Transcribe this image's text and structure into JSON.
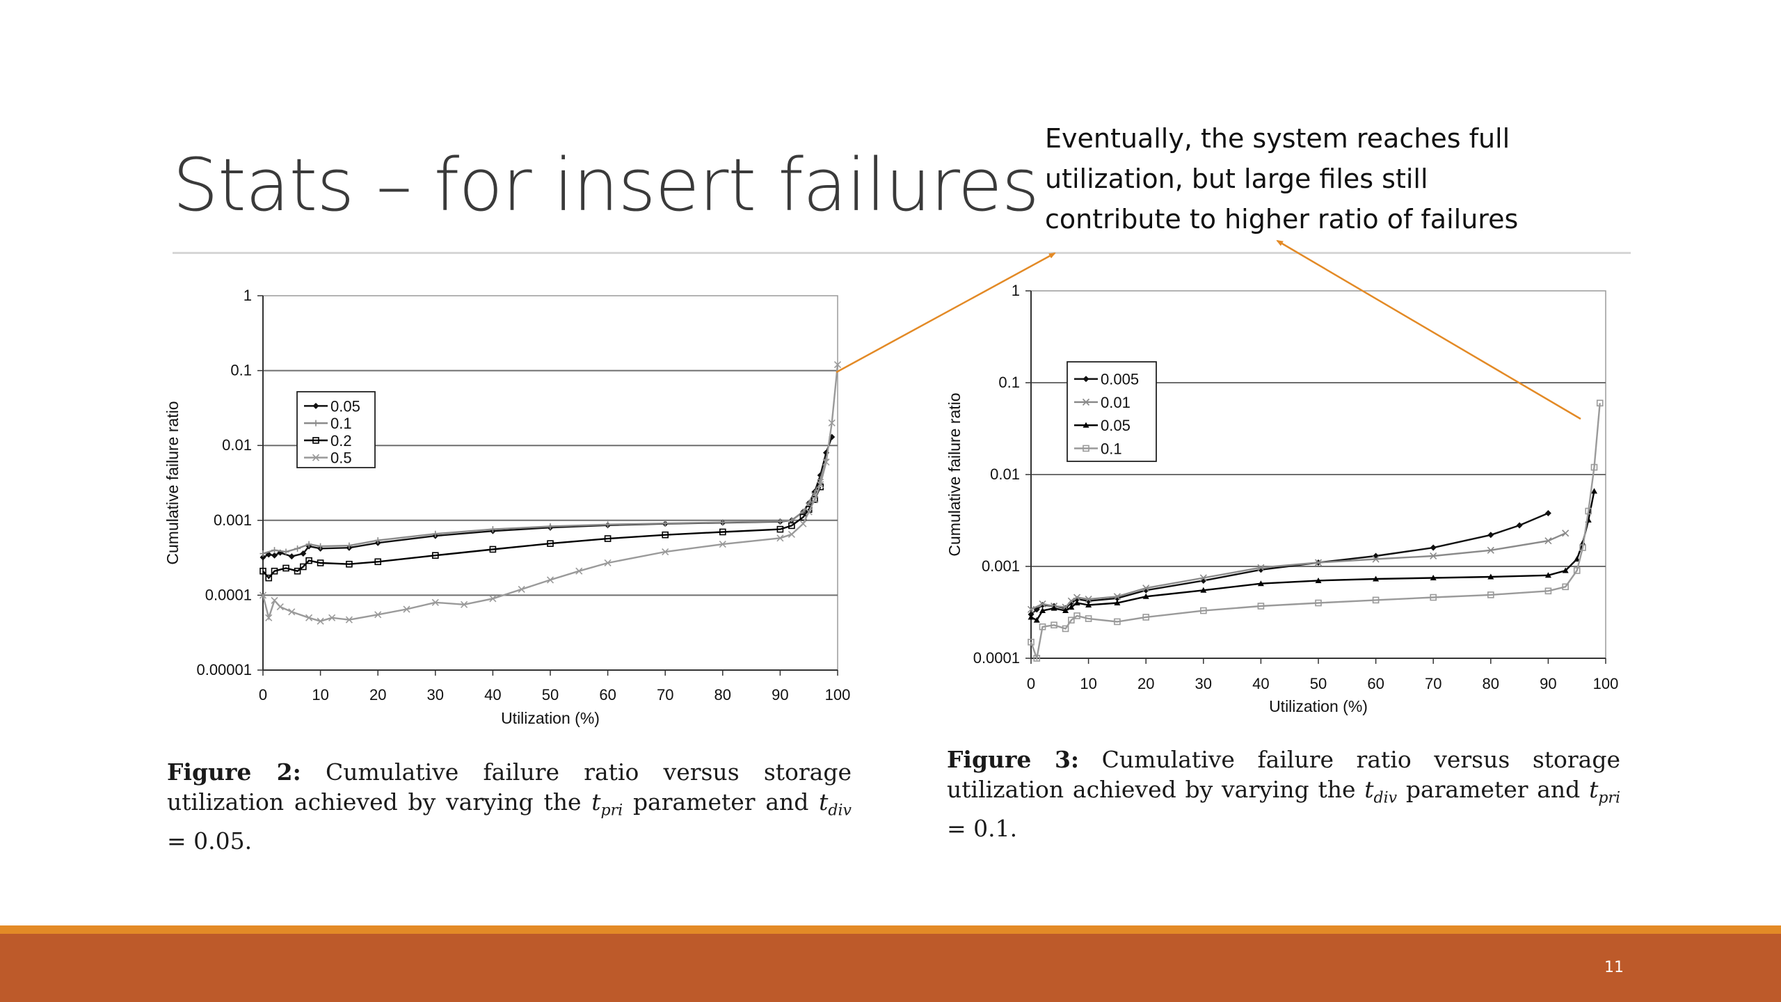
{
  "slide": {
    "title": "Stats – for insert failures",
    "callout_lines": [
      "Eventually, the system reaches full",
      "utilization, but large files still",
      "contribute to higher ratio of failures"
    ],
    "page_number": "11"
  },
  "colors": {
    "accent_orange": "#e38a26",
    "footer_bar": "#bd5a2a",
    "arrow": "#e38a26"
  },
  "captions": [
    {
      "label": "Figure 2:",
      "before": "Cumulative failure ratio versus storage utilization achieved by varying the",
      "var1": "t",
      "var1_sub": "pri",
      "middle": "parameter and",
      "var2": "t",
      "var2_sub": "div",
      "after": "= 0.05."
    },
    {
      "label": "Figure 3:",
      "before": "Cumulative failure ratio versus storage utilization achieved by varying the",
      "var1": "t",
      "var1_sub": "div",
      "middle": "parameter and",
      "var2": "t",
      "var2_sub": "pri",
      "after": "= 0.1."
    }
  ],
  "chart_data": [
    {
      "type": "line",
      "xlabel": "Utilization (%)",
      "ylabel": "Cumulative failure ratio",
      "xlim": [
        0,
        100
      ],
      "ylim": [
        1e-05,
        1
      ],
      "log_y": true,
      "grid": "horizontal",
      "legend_position": "top-left",
      "x_ticks": [
        "0",
        "10",
        "20",
        "30",
        "40",
        "50",
        "60",
        "70",
        "80",
        "90",
        "100"
      ],
      "y_ticks": [
        "1",
        "0.1",
        "0.01",
        "0.001",
        "0.0001",
        "0.00001"
      ],
      "series": [
        {
          "name": "0.05",
          "color": "#111111",
          "marker": "diamond",
          "x": [
            0,
            1,
            2,
            3,
            5,
            7,
            8,
            10,
            15,
            20,
            30,
            40,
            50,
            60,
            70,
            80,
            90,
            92,
            94,
            95,
            96,
            97,
            98,
            99
          ],
          "y": [
            0.00032,
            0.00035,
            0.00034,
            0.00037,
            0.00033,
            0.00036,
            0.00045,
            0.00042,
            0.00043,
            0.0005,
            0.00062,
            0.00072,
            0.0008,
            0.00086,
            0.0009,
            0.00093,
            0.00096,
            0.001,
            0.0013,
            0.0017,
            0.0024,
            0.004,
            0.008,
            0.013
          ]
        },
        {
          "name": "0.1",
          "color": "#8a8a8a",
          "marker": "plus",
          "x": [
            0,
            2,
            4,
            6,
            8,
            10,
            15,
            20,
            30,
            40,
            50,
            60,
            70,
            80,
            90,
            92,
            94,
            95,
            96,
            97,
            98
          ],
          "y": [
            0.00036,
            0.0004,
            0.00038,
            0.00042,
            0.00048,
            0.00045,
            0.00046,
            0.00054,
            0.00066,
            0.00076,
            0.00083,
            0.00088,
            0.00091,
            0.00094,
            0.00097,
            0.001,
            0.0013,
            0.0017,
            0.0023,
            0.0035,
            0.0065
          ]
        },
        {
          "name": "0.2",
          "color": "#000000",
          "marker": "square",
          "x": [
            0,
            1,
            2,
            4,
            6,
            7,
            8,
            10,
            15,
            20,
            30,
            40,
            50,
            60,
            70,
            80,
            90,
            92,
            94,
            95,
            96,
            97
          ],
          "y": [
            0.00021,
            0.00017,
            0.00021,
            0.00023,
            0.00021,
            0.00024,
            0.00029,
            0.00027,
            0.00026,
            0.00028,
            0.00034,
            0.00041,
            0.00049,
            0.00057,
            0.00064,
            0.0007,
            0.00076,
            0.00085,
            0.0011,
            0.0014,
            0.0019,
            0.0028
          ]
        },
        {
          "name": "0.5",
          "color": "#9a9a9a",
          "marker": "x",
          "x": [
            0,
            1,
            2,
            3,
            5,
            8,
            10,
            12,
            15,
            20,
            25,
            30,
            35,
            40,
            45,
            50,
            55,
            60,
            70,
            80,
            90,
            92,
            94,
            95,
            96,
            97,
            98,
            99,
            100
          ],
          "y": [
            0.0001,
            5e-05,
            8.5e-05,
            7e-05,
            6e-05,
            5e-05,
            4.5e-05,
            5e-05,
            4.7e-05,
            5.5e-05,
            6.5e-05,
            8e-05,
            7.5e-05,
            9e-05,
            0.00012,
            0.00016,
            0.00021,
            0.00027,
            0.00038,
            0.00048,
            0.00058,
            0.00065,
            0.0009,
            0.0013,
            0.0019,
            0.003,
            0.006,
            0.02,
            0.12
          ]
        }
      ]
    },
    {
      "type": "line",
      "xlabel": "Utilization (%)",
      "ylabel": "Cumulative failure ratio",
      "xlim": [
        0,
        100
      ],
      "ylim": [
        0.0001,
        1
      ],
      "log_y": true,
      "grid": "horizontal",
      "legend_position": "top-left",
      "x_ticks": [
        "0",
        "10",
        "20",
        "30",
        "40",
        "50",
        "60",
        "70",
        "80",
        "90",
        "100"
      ],
      "y_ticks": [
        "1",
        "0.1",
        "0.01",
        "0.001",
        "0.0001"
      ],
      "series": [
        {
          "name": "0.005",
          "color": "#111111",
          "marker": "diamond",
          "x": [
            0,
            1,
            2,
            4,
            6,
            7,
            8,
            10,
            15,
            20,
            30,
            40,
            50,
            60,
            70,
            80,
            85,
            90
          ],
          "y": [
            0.0003,
            0.00034,
            0.00038,
            0.00037,
            0.00035,
            0.0004,
            0.00044,
            0.00042,
            0.00045,
            0.00055,
            0.0007,
            0.00092,
            0.0011,
            0.0013,
            0.0016,
            0.0022,
            0.0028,
            0.0038
          ]
        },
        {
          "name": "0.01",
          "color": "#8a8a8a",
          "marker": "x",
          "x": [
            0,
            2,
            4,
            6,
            7,
            8,
            10,
            15,
            20,
            30,
            40,
            50,
            60,
            70,
            80,
            90,
            93
          ],
          "y": [
            0.00034,
            0.00039,
            0.00037,
            0.00036,
            0.00042,
            0.00046,
            0.00044,
            0.00047,
            0.00058,
            0.00075,
            0.00097,
            0.0011,
            0.0012,
            0.0013,
            0.0015,
            0.0019,
            0.0023
          ]
        },
        {
          "name": "0.05",
          "color": "#000000",
          "marker": "triangle",
          "x": [
            0,
            1,
            2,
            4,
            6,
            7,
            8,
            10,
            15,
            20,
            30,
            40,
            50,
            60,
            70,
            80,
            90,
            93,
            95,
            96,
            97,
            98
          ],
          "y": [
            0.00028,
            0.00026,
            0.00033,
            0.00035,
            0.00033,
            0.00036,
            0.0004,
            0.00038,
            0.0004,
            0.00047,
            0.00055,
            0.00065,
            0.0007,
            0.00073,
            0.00075,
            0.00077,
            0.0008,
            0.0009,
            0.0012,
            0.0018,
            0.0032,
            0.0066
          ]
        },
        {
          "name": "0.1",
          "color": "#9a9a9a",
          "marker": "square",
          "x": [
            0,
            1,
            2,
            4,
            6,
            7,
            8,
            10,
            15,
            20,
            30,
            40,
            50,
            60,
            70,
            80,
            90,
            93,
            95,
            96,
            97,
            98,
            99
          ],
          "y": [
            0.00015,
            0.0001,
            0.00022,
            0.00023,
            0.00021,
            0.00026,
            0.00029,
            0.00027,
            0.00025,
            0.00028,
            0.00033,
            0.00037,
            0.0004,
            0.00043,
            0.00046,
            0.00049,
            0.00054,
            0.0006,
            0.0009,
            0.0016,
            0.004,
            0.012,
            0.06
          ]
        }
      ]
    }
  ]
}
